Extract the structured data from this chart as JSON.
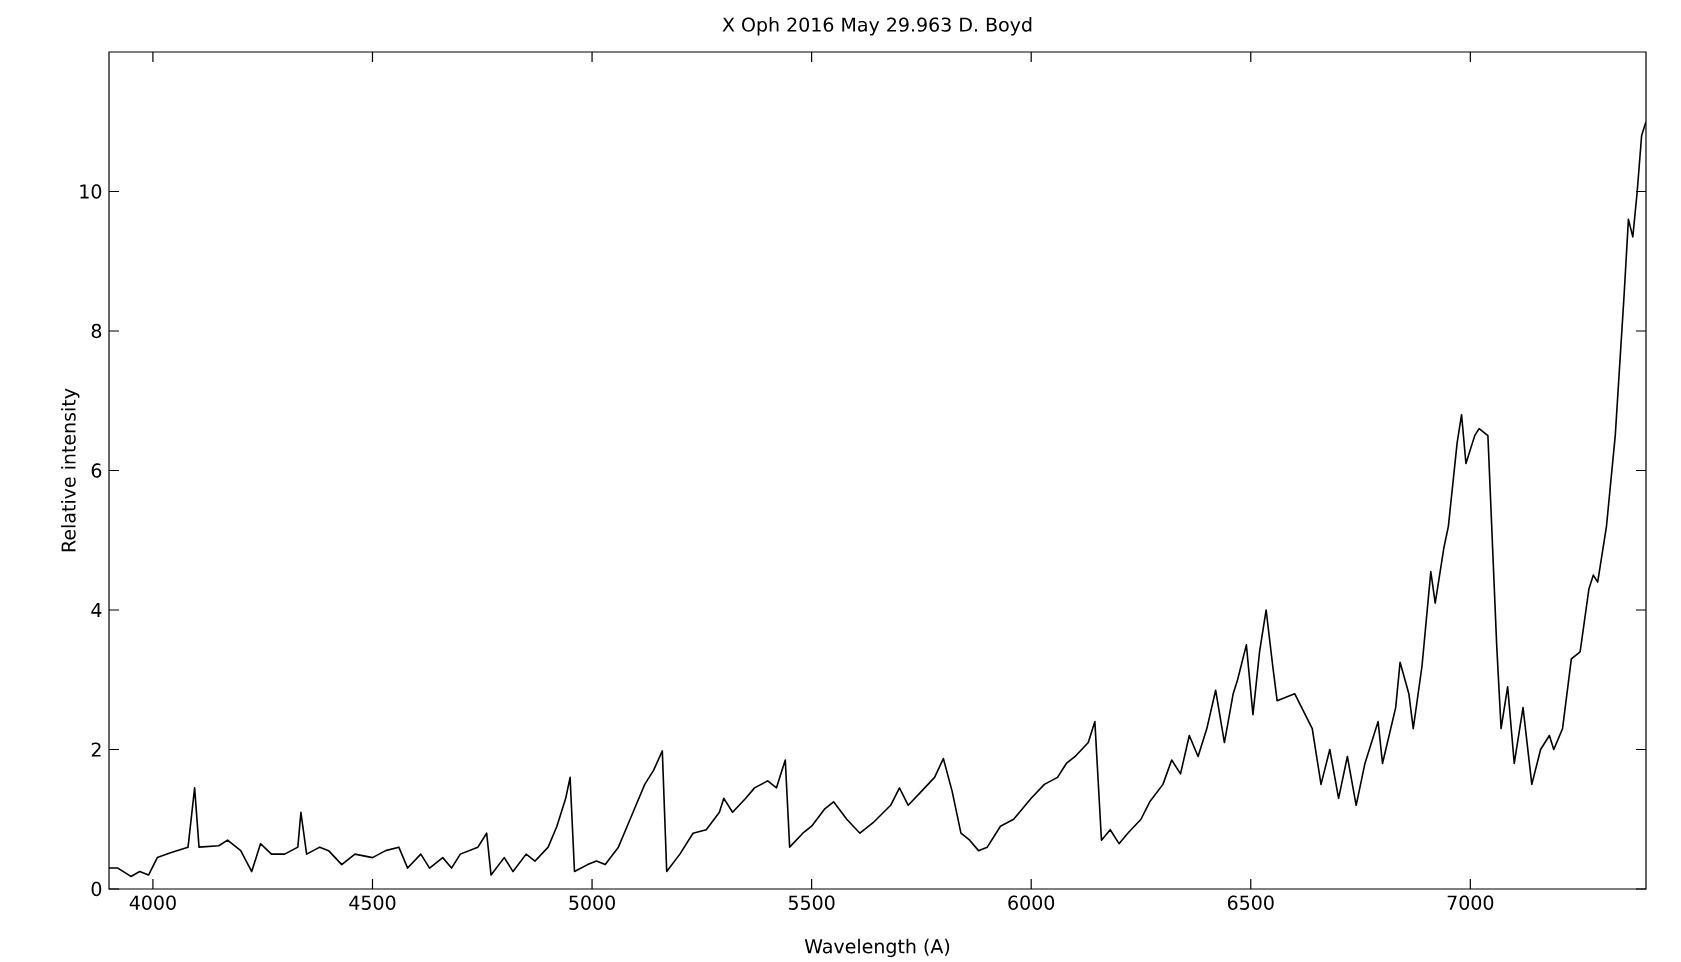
{
  "chart_data": {
    "type": "line",
    "title": "X Oph   2016 May 29.963   D. Boyd",
    "xlabel": "Wavelength (A)",
    "ylabel": "Relative intensity",
    "color": "#000000",
    "xlim": [
      3900,
      7400
    ],
    "ylim": [
      0,
      12
    ],
    "xticks": [
      4000,
      4500,
      5000,
      5500,
      6000,
      6500,
      7000
    ],
    "yticks": [
      0,
      2,
      4,
      6,
      8,
      10
    ],
    "x": [
      3900,
      3920,
      3950,
      3970,
      3990,
      4010,
      4040,
      4080,
      4095,
      4105,
      4150,
      4170,
      4200,
      4225,
      4245,
      4270,
      4300,
      4330,
      4337,
      4350,
      4380,
      4400,
      4430,
      4460,
      4500,
      4530,
      4560,
      4580,
      4610,
      4630,
      4660,
      4680,
      4700,
      4740,
      4760,
      4770,
      4800,
      4820,
      4850,
      4870,
      4900,
      4920,
      4940,
      4950,
      4960,
      4990,
      5010,
      5030,
      5060,
      5080,
      5100,
      5120,
      5140,
      5160,
      5170,
      5200,
      5230,
      5260,
      5290,
      5300,
      5320,
      5350,
      5370,
      5400,
      5420,
      5440,
      5450,
      5480,
      5500,
      5530,
      5550,
      5580,
      5610,
      5640,
      5680,
      5700,
      5720,
      5750,
      5780,
      5800,
      5820,
      5840,
      5860,
      5880,
      5900,
      5930,
      5960,
      6000,
      6030,
      6060,
      6080,
      6100,
      6130,
      6145,
      6160,
      6180,
      6200,
      6220,
      6250,
      6270,
      6300,
      6320,
      6340,
      6360,
      6380,
      6400,
      6420,
      6440,
      6460,
      6470,
      6490,
      6505,
      6520,
      6535,
      6550,
      6560,
      6600,
      6640,
      6660,
      6680,
      6700,
      6720,
      6740,
      6760,
      6790,
      6800,
      6830,
      6840,
      6860,
      6870,
      6890,
      6910,
      6920,
      6940,
      6950,
      6970,
      6980,
      6990,
      7010,
      7020,
      7040,
      7060,
      7070,
      7085,
      7100,
      7120,
      7140,
      7160,
      7180,
      7190,
      7210,
      7230,
      7250,
      7270,
      7280,
      7290,
      7310,
      7330,
      7350,
      7360,
      7370,
      7380,
      7390,
      7400
    ],
    "values": [
      0.3,
      0.3,
      0.18,
      0.25,
      0.2,
      0.45,
      0.52,
      0.6,
      1.45,
      0.6,
      0.62,
      0.7,
      0.55,
      0.25,
      0.65,
      0.5,
      0.5,
      0.6,
      1.1,
      0.5,
      0.6,
      0.55,
      0.35,
      0.5,
      0.45,
      0.55,
      0.6,
      0.3,
      0.5,
      0.3,
      0.45,
      0.3,
      0.5,
      0.6,
      0.8,
      0.2,
      0.45,
      0.25,
      0.5,
      0.4,
      0.6,
      0.9,
      1.3,
      1.6,
      0.25,
      0.35,
      0.4,
      0.35,
      0.6,
      0.9,
      1.2,
      1.5,
      1.7,
      1.98,
      0.25,
      0.5,
      0.8,
      0.85,
      1.1,
      1.3,
      1.1,
      1.3,
      1.45,
      1.55,
      1.45,
      1.85,
      0.6,
      0.8,
      0.9,
      1.15,
      1.25,
      1.0,
      0.8,
      0.95,
      1.2,
      1.45,
      1.2,
      1.4,
      1.6,
      1.87,
      1.4,
      0.8,
      0.7,
      0.55,
      0.6,
      0.9,
      1.0,
      1.3,
      1.5,
      1.6,
      1.8,
      1.9,
      2.1,
      2.4,
      0.7,
      0.85,
      0.65,
      0.8,
      1.0,
      1.25,
      1.5,
      1.85,
      1.65,
      2.2,
      1.9,
      2.3,
      2.85,
      2.1,
      2.8,
      3.0,
      3.5,
      2.5,
      3.4,
      4.0,
      3.2,
      2.7,
      2.8,
      2.3,
      1.5,
      2.0,
      1.3,
      1.9,
      1.2,
      1.8,
      2.4,
      1.8,
      2.6,
      3.25,
      2.8,
      2.3,
      3.2,
      4.55,
      4.1,
      4.9,
      5.2,
      6.4,
      6.8,
      6.1,
      6.5,
      6.6,
      6.5,
      3.5,
      2.3,
      2.9,
      1.8,
      2.6,
      1.5,
      2.0,
      2.2,
      2.0,
      2.3,
      3.3,
      3.4,
      4.3,
      4.5,
      4.4,
      5.2,
      6.5,
      8.5,
      9.6,
      9.35,
      10.0,
      10.8,
      11.0
    ]
  }
}
